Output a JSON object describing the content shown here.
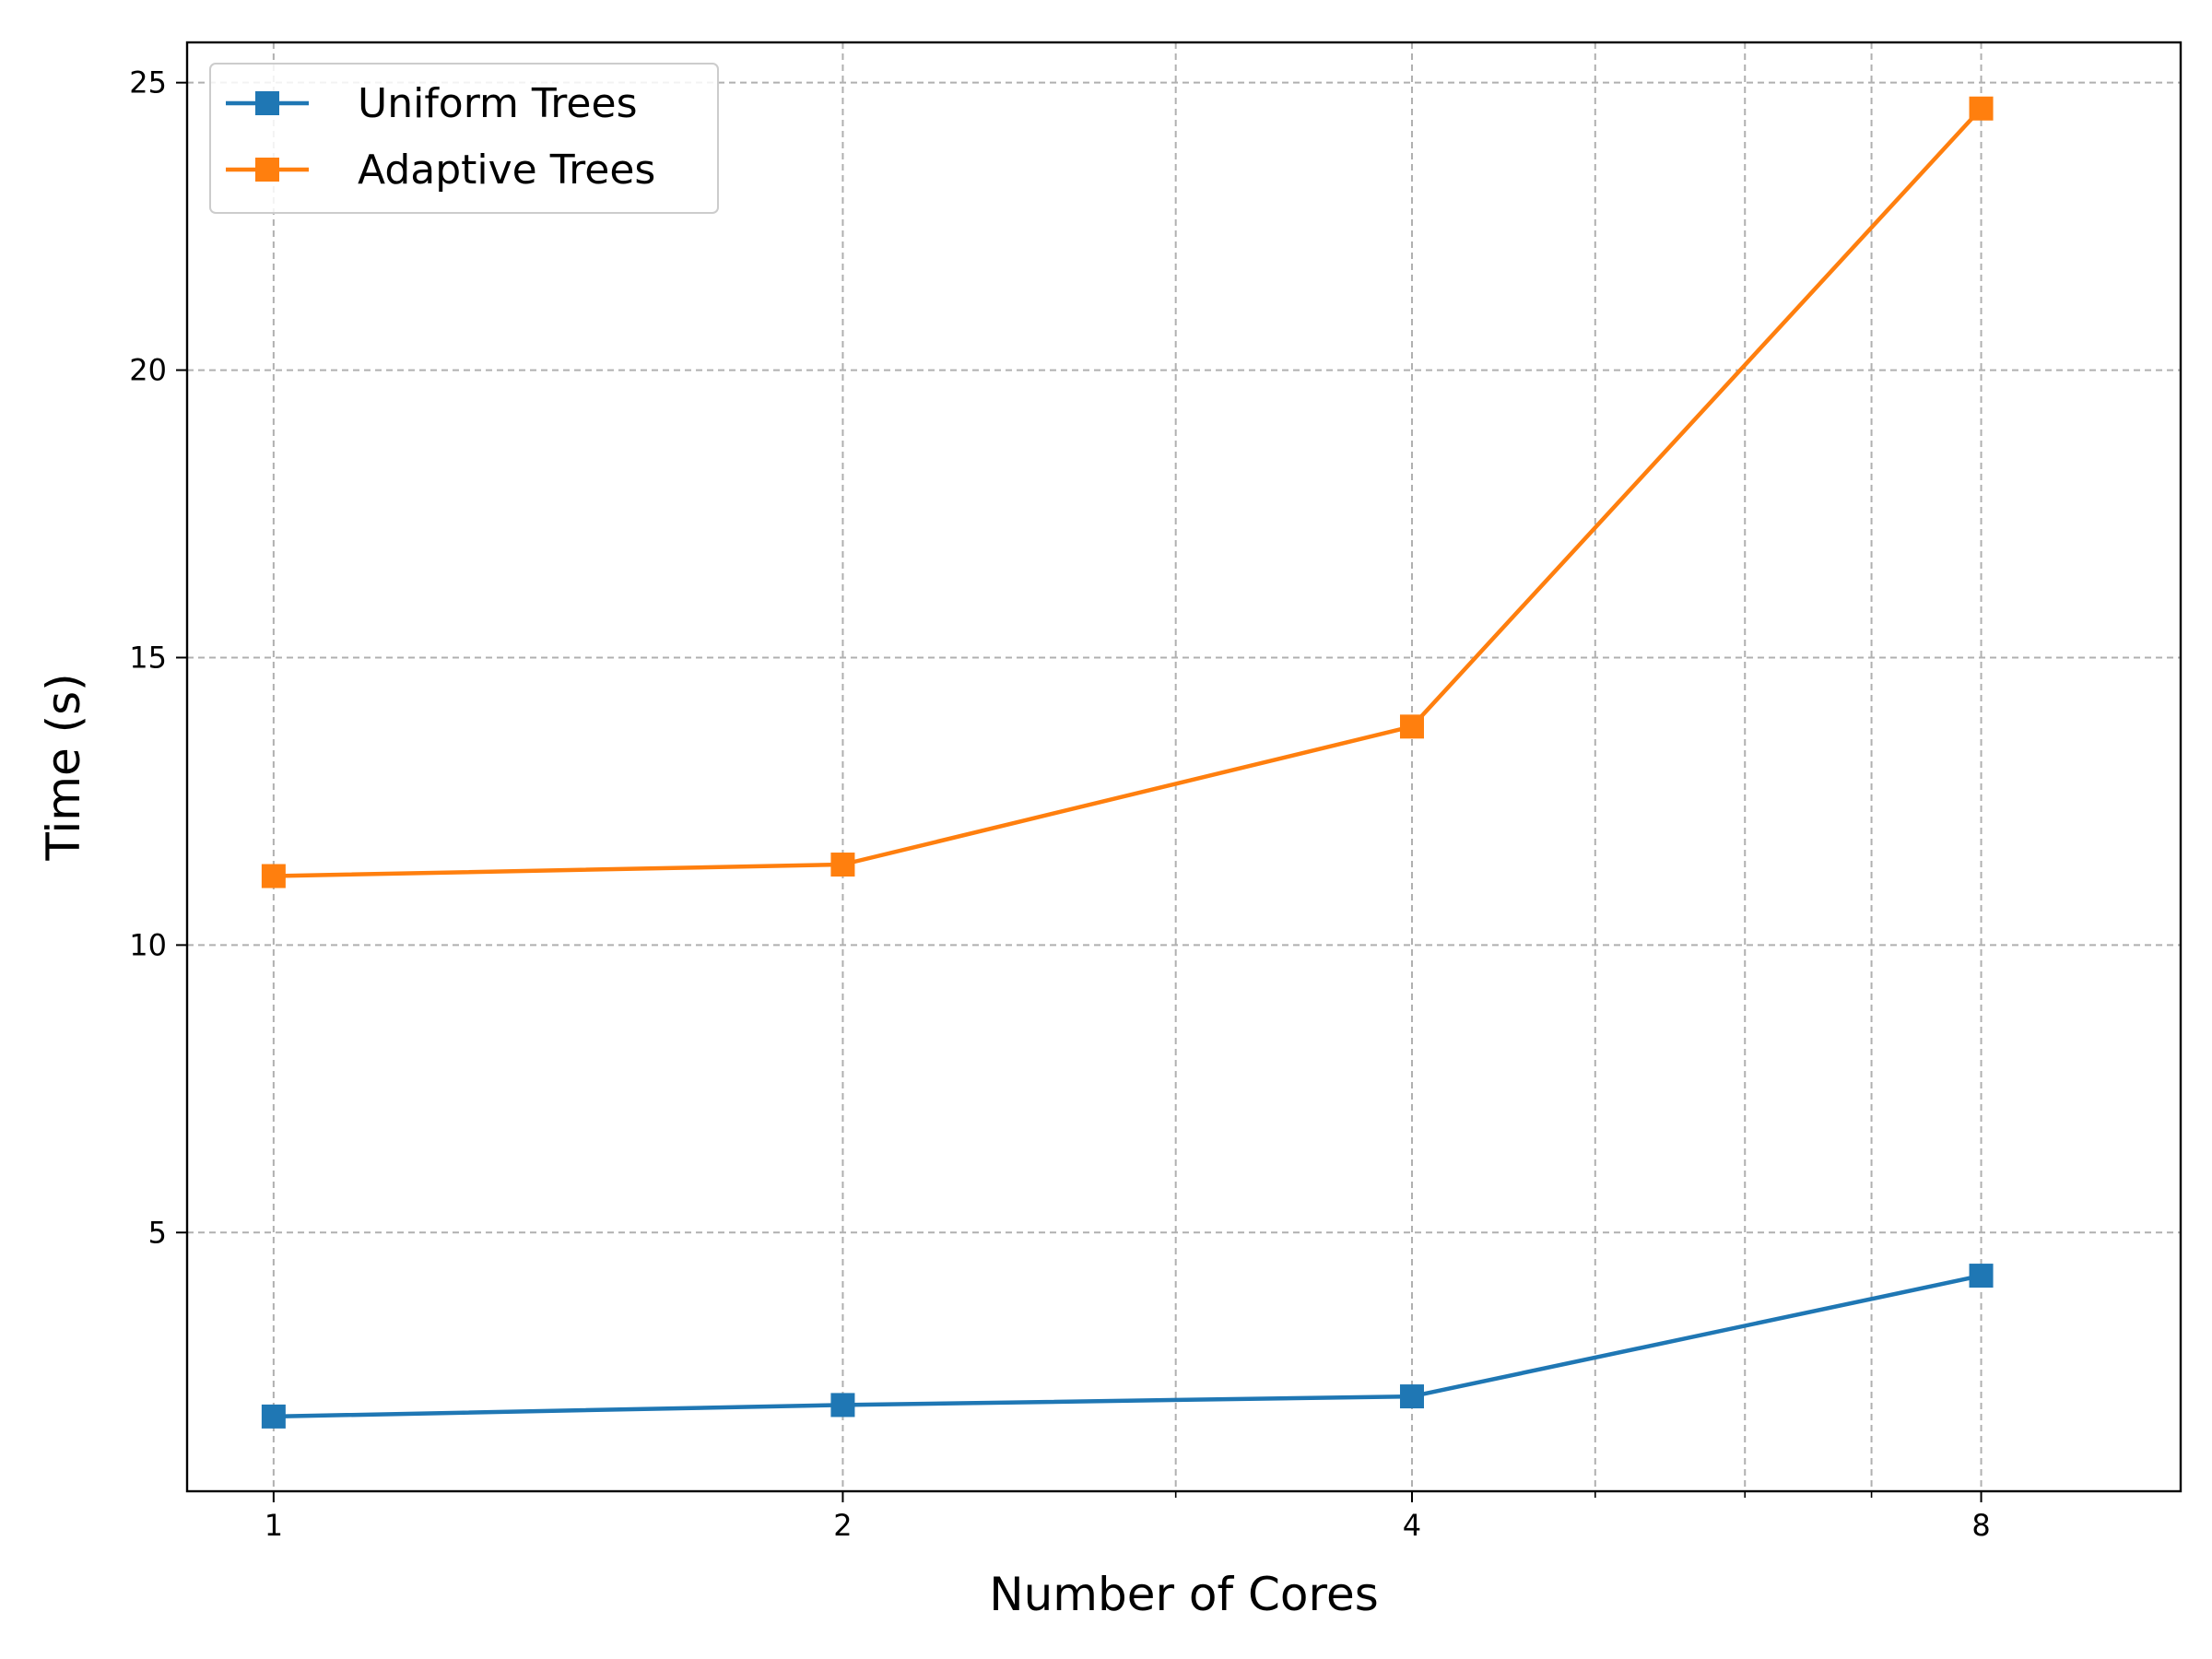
{
  "chart_data": {
    "type": "line",
    "title": "",
    "xlabel": "Number of Cores",
    "ylabel": "Time (s)",
    "xscale": "log2",
    "x": [
      1,
      2,
      4,
      8
    ],
    "xticks": [
      1,
      2,
      4,
      8
    ],
    "xtick_labels": [
      "1",
      "2",
      "4",
      "8"
    ],
    "xlim": [
      0.9,
      10.2
    ],
    "yticks": [
      5,
      10,
      15,
      20,
      25
    ],
    "ytick_labels": [
      "5",
      "10",
      "15",
      "20",
      "25"
    ],
    "ylim": [
      0.5,
      25.7
    ],
    "grid": true,
    "grid_style": "dashed",
    "legend_position": "top-left",
    "series": [
      {
        "name": "Uniform Trees",
        "color": "#1f77b4",
        "marker": "square",
        "values": [
          1.8,
          2.0,
          2.15,
          4.25
        ]
      },
      {
        "name": "Adaptive Trees",
        "color": "#ff7f0e",
        "marker": "square",
        "values": [
          11.2,
          11.4,
          13.8,
          24.55
        ]
      }
    ]
  }
}
